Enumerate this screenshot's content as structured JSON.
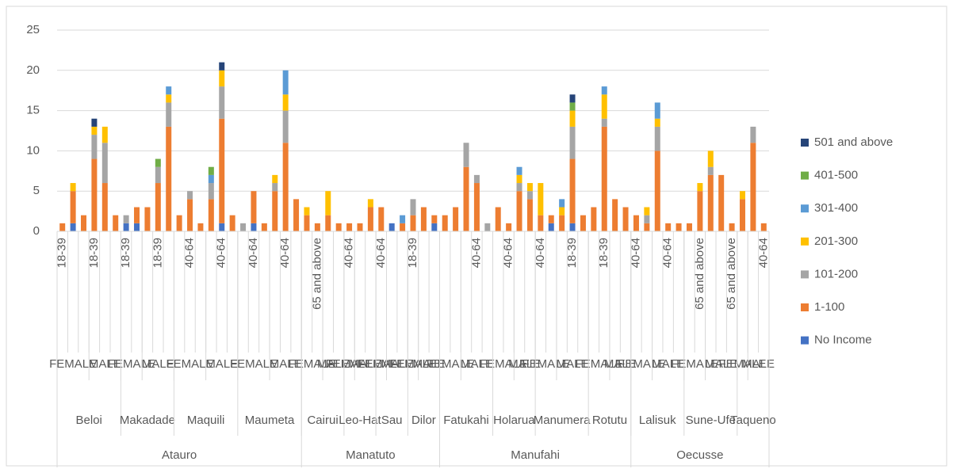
{
  "chart_data": {
    "type": "stacked_bar",
    "ylim": [
      0,
      25
    ],
    "yticks": [
      0,
      5,
      10,
      15,
      20,
      25
    ],
    "grid": true,
    "legend": "right",
    "categories": [
      "18-39",
      null,
      null,
      "18-39",
      null,
      null,
      "18-39",
      null,
      null,
      "18-39",
      null,
      null,
      "40-64",
      null,
      null,
      "40-64",
      null,
      null,
      "40-64",
      null,
      null,
      "40-64",
      null,
      null,
      "65 and above",
      null,
      null,
      "40-64",
      null,
      null,
      "40-64",
      null,
      null,
      "18-39",
      null,
      null,
      null,
      null,
      null,
      "40-64",
      null,
      null,
      "40-64",
      null,
      null,
      "40-64",
      null,
      null,
      "18-39",
      null,
      null,
      "18-39",
      null,
      null,
      "40-64",
      null,
      null,
      "40-64",
      null,
      null,
      "65 and above",
      null,
      null,
      "65 and above",
      null,
      null,
      "40-64"
    ],
    "sex_groups": [
      {
        "label": "FEMALE",
        "span": 3
      },
      {
        "label": "MALE",
        "span": 3
      },
      {
        "label": "FEMALE",
        "span": 2
      },
      {
        "label": "MALE",
        "span": 3
      },
      {
        "label": "FEMALE",
        "span": 3
      },
      {
        "label": "MALE",
        "span": 3
      },
      {
        "label": "FEMALE",
        "span": 3
      },
      {
        "label": "MALE",
        "span": 3
      },
      {
        "label": "FEMALE",
        "span": 2
      },
      {
        "label": "MALE",
        "span": 2
      },
      {
        "label": "FEMALE",
        "span": 1
      },
      {
        "label": "MALE",
        "span": 2
      },
      {
        "label": "FEMALE",
        "span": 1
      },
      {
        "label": "MALE",
        "span": 2
      },
      {
        "label": "FEMALE",
        "span": 1
      },
      {
        "label": "MALE",
        "span": 2
      },
      {
        "label": "FEMALE",
        "span": 2
      },
      {
        "label": "MALE",
        "span": 3
      },
      {
        "label": "FEMALE",
        "span": 2
      },
      {
        "label": "MALE",
        "span": 2
      },
      {
        "label": "FEMALE",
        "span": 2
      },
      {
        "label": "MALE",
        "span": 3
      },
      {
        "label": "FEMALE",
        "span": 2
      },
      {
        "label": "MALE",
        "span": 2
      },
      {
        "label": "FEMALE",
        "span": 2
      },
      {
        "label": "MALE",
        "span": 3
      },
      {
        "label": "FEMALE",
        "span": 2
      },
      {
        "label": "MALE",
        "span": 3
      },
      {
        "label": "FEMALE",
        "span": 1
      },
      {
        "label": "MALE",
        "span": 2
      }
    ],
    "subdistricts": [
      {
        "label": "Beloi",
        "span": 6
      },
      {
        "label": "Makadade",
        "span": 5
      },
      {
        "label": "Maquili",
        "span": 6
      },
      {
        "label": "Maumeta",
        "span": 6
      },
      {
        "label": "Cairui",
        "span": 4
      },
      {
        "label": "Leo-Hat",
        "span": 3
      },
      {
        "label": "Sau",
        "span": 3
      },
      {
        "label": "Dilor",
        "span": 3
      },
      {
        "label": "Fatukahi",
        "span": 5
      },
      {
        "label": "Holarua",
        "span": 4
      },
      {
        "label": "Manumera",
        "span": 5
      },
      {
        "label": "Rotutu",
        "span": 4
      },
      {
        "label": "Lalisuk",
        "span": 5
      },
      {
        "label": "Sune-Ufe",
        "span": 5
      },
      {
        "label": "Taqueno",
        "span": 3
      }
    ],
    "districts": [
      {
        "label": "Atauro",
        "span": 23
      },
      {
        "label": "Manatuto",
        "span": 13
      },
      {
        "label": "Manufahi",
        "span": 18
      },
      {
        "label": "Oecusse",
        "span": 13
      }
    ],
    "series": [
      {
        "name": "No Income",
        "color": "#4472c4",
        "values": [
          0,
          1,
          0,
          0,
          0,
          0,
          1,
          1,
          0,
          0,
          0,
          0,
          0,
          0,
          0,
          1,
          0,
          0,
          1,
          0,
          0,
          0,
          0,
          0,
          0,
          0,
          0,
          0,
          0,
          0,
          0,
          1,
          0,
          0,
          0,
          1,
          0,
          0,
          0,
          0,
          0,
          0,
          0,
          0,
          0,
          0,
          1,
          0,
          1,
          0,
          0,
          0,
          0,
          0,
          0,
          0,
          0,
          0,
          0,
          0,
          0,
          0,
          0,
          0,
          0,
          0,
          0
        ]
      },
      {
        "name": "1-100",
        "color": "#ed7d31",
        "values": [
          1,
          4,
          2,
          9,
          6,
          2,
          0,
          2,
          3,
          6,
          13,
          2,
          4,
          1,
          4,
          13,
          2,
          0,
          4,
          1,
          5,
          11,
          4,
          2,
          1,
          2,
          1,
          1,
          1,
          3,
          3,
          0,
          1,
          2,
          3,
          1,
          2,
          3,
          8,
          6,
          0,
          3,
          1,
          5,
          4,
          2,
          1,
          2,
          8,
          2,
          3,
          13,
          4,
          3,
          2,
          1,
          10,
          1,
          1,
          1,
          5,
          7,
          7,
          1,
          4,
          11,
          1
        ]
      },
      {
        "name": "101-200",
        "color": "#a5a5a5",
        "values": [
          0,
          0,
          0,
          3,
          5,
          0,
          1,
          0,
          0,
          2,
          3,
          0,
          1,
          0,
          2,
          4,
          0,
          1,
          0,
          0,
          1,
          4,
          0,
          0,
          0,
          0,
          0,
          0,
          0,
          0,
          0,
          0,
          0,
          2,
          0,
          0,
          0,
          0,
          3,
          1,
          1,
          0,
          0,
          1,
          1,
          0,
          0,
          0,
          4,
          0,
          0,
          1,
          0,
          0,
          0,
          1,
          3,
          0,
          0,
          0,
          0,
          1,
          0,
          0,
          0,
          2,
          0
        ]
      },
      {
        "name": "201-300",
        "color": "#ffc000",
        "values": [
          0,
          1,
          0,
          1,
          2,
          0,
          0,
          0,
          0,
          0,
          1,
          0,
          0,
          0,
          0,
          2,
          0,
          0,
          0,
          0,
          1,
          2,
          0,
          1,
          0,
          3,
          0,
          0,
          0,
          1,
          0,
          0,
          0,
          0,
          0,
          0,
          0,
          0,
          0,
          0,
          0,
          0,
          0,
          1,
          1,
          4,
          0,
          1,
          2,
          0,
          0,
          3,
          0,
          0,
          0,
          1,
          1,
          0,
          0,
          0,
          1,
          2,
          0,
          0,
          1,
          0,
          0
        ]
      },
      {
        "name": "301-400",
        "color": "#5b9bd5",
        "values": [
          0,
          0,
          0,
          0,
          0,
          0,
          0,
          0,
          0,
          0,
          1,
          0,
          0,
          0,
          1,
          0,
          0,
          0,
          0,
          0,
          0,
          3,
          0,
          0,
          0,
          0,
          0,
          0,
          0,
          0,
          0,
          0,
          1,
          0,
          0,
          0,
          0,
          0,
          0,
          0,
          0,
          0,
          0,
          1,
          0,
          0,
          0,
          1,
          0,
          0,
          0,
          1,
          0,
          0,
          0,
          0,
          2,
          0,
          0,
          0,
          0,
          0,
          0,
          0,
          0,
          0,
          0
        ]
      },
      {
        "name": "401-500",
        "color": "#70ad47",
        "values": [
          0,
          0,
          0,
          0,
          0,
          0,
          0,
          0,
          0,
          1,
          0,
          0,
          0,
          0,
          1,
          0,
          0,
          0,
          0,
          0,
          0,
          0,
          0,
          0,
          0,
          0,
          0,
          0,
          0,
          0,
          0,
          0,
          0,
          0,
          0,
          0,
          0,
          0,
          0,
          0,
          0,
          0,
          0,
          0,
          0,
          0,
          0,
          0,
          1,
          0,
          0,
          0,
          0,
          0,
          0,
          0,
          0,
          0,
          0,
          0,
          0,
          0,
          0,
          0,
          0,
          0,
          0
        ]
      },
      {
        "name": "501 and above",
        "color": "#264478",
        "values": [
          0,
          0,
          0,
          1,
          0,
          0,
          0,
          0,
          0,
          0,
          0,
          0,
          0,
          0,
          0,
          1,
          0,
          0,
          0,
          0,
          0,
          0,
          0,
          0,
          0,
          0,
          0,
          0,
          0,
          0,
          0,
          0,
          0,
          0,
          0,
          0,
          0,
          0,
          0,
          0,
          0,
          0,
          0,
          0,
          0,
          0,
          0,
          0,
          1,
          0,
          0,
          0,
          0,
          0,
          0,
          0,
          0,
          0,
          0,
          0,
          0,
          0,
          0,
          0,
          0,
          0,
          0
        ]
      }
    ]
  }
}
